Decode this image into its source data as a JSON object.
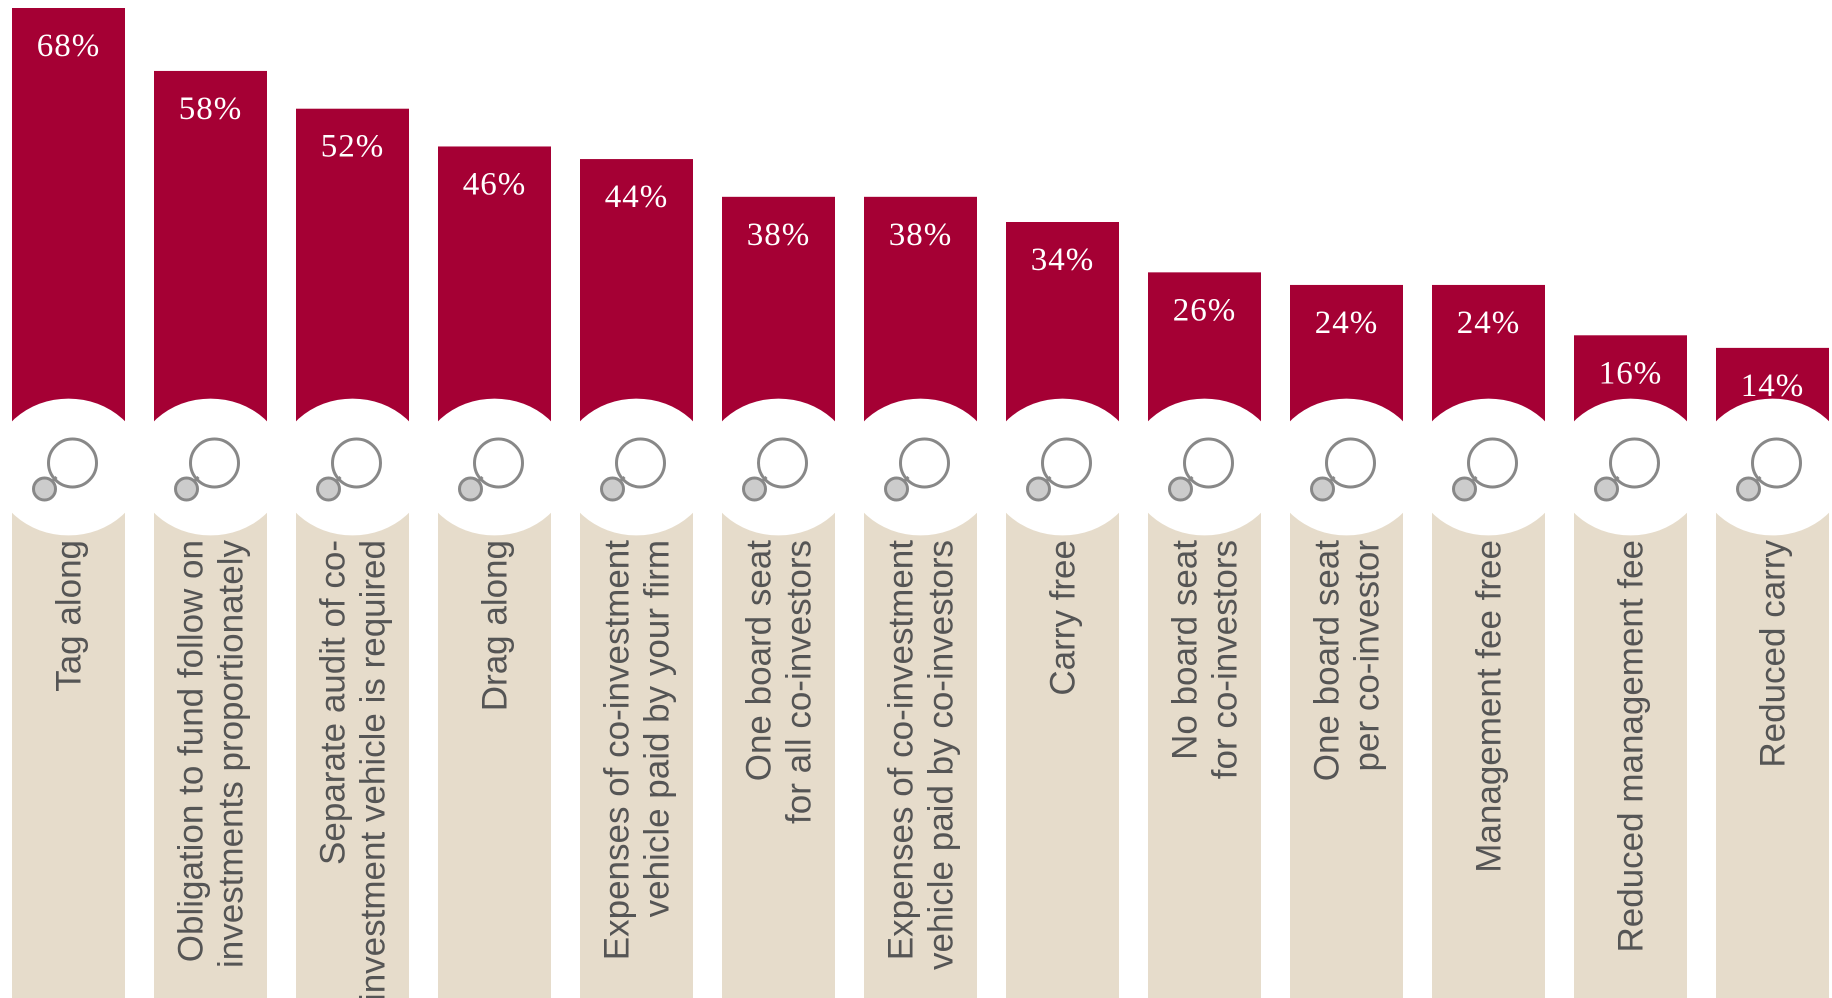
{
  "chart_data": {
    "type": "bar",
    "categories": [
      "Tag along",
      "Obligation to fund follow on\ninvestments proportionately",
      "Separate audit of co-\ninvestment vehicle is required",
      "Drag along",
      "Expenses of co-investment\nvehicle paid by your firm",
      "One board seat\nfor all co-investors",
      "Expenses of co-investment\nvehicle paid by co-investors",
      "Carry free",
      "No board seat\nfor co-investors",
      "One board seat\nper co-investor",
      "Management fee free",
      "Reduced management fee",
      "Reduced carry"
    ],
    "values": [
      68,
      58,
      52,
      46,
      44,
      38,
      38,
      34,
      26,
      24,
      24,
      16,
      14
    ],
    "value_labels": [
      "68%",
      "58%",
      "52%",
      "46%",
      "44%",
      "38%",
      "38%",
      "34%",
      "26%",
      "24%",
      "24%",
      "16%",
      "14%"
    ],
    "color": "#a50034",
    "base_color": "#e6dccb",
    "ylim": [
      0,
      68
    ]
  }
}
